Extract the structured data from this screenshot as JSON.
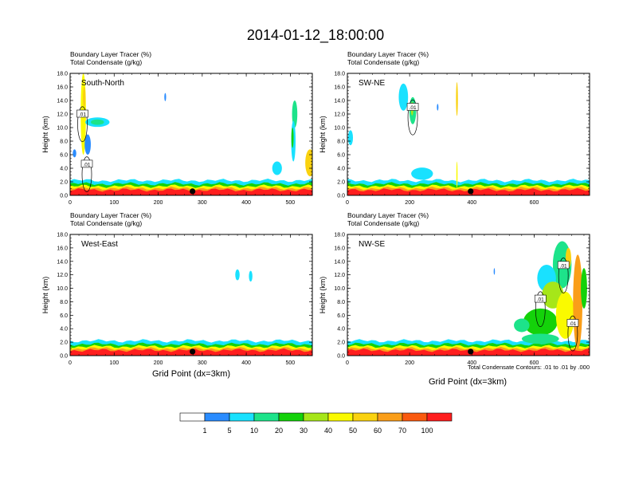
{
  "title": "2014-01-12_18:00:00",
  "panel_header_line1": "Boundary Layer Tracer   (%)",
  "panel_header_line2": "Total Condensate   (g/kg)",
  "xlabel": "Grid Point (dx=3km)",
  "ylabel": "Height (km)",
  "contour_note": "Total Condensate Contours: .01 to .01 by .000",
  "colorbar": {
    "colors": [
      "#ffffff",
      "#2a8cff",
      "#19e1ff",
      "#1de38a",
      "#14d20a",
      "#a6e619",
      "#fafa00",
      "#fad20f",
      "#fa9e19",
      "#fa5a0f",
      "#ff1e1e"
    ],
    "labels": [
      "1",
      "5",
      "10",
      "20",
      "30",
      "40",
      "50",
      "60",
      "70",
      "100"
    ]
  },
  "chart_data": [
    {
      "type": "heatmap",
      "name": "South-North",
      "xlim": [
        0,
        550
      ],
      "ylim": [
        0,
        18
      ],
      "xticks": [
        "0",
        "100",
        "200",
        "300",
        "400",
        "500"
      ],
      "yticks": [
        "0.0",
        "2.0",
        "4.0",
        "6.0",
        "8.0",
        "10.0",
        "12.0",
        "14.0",
        "16.0",
        "18.0"
      ],
      "marker_x": 278,
      "contour_labels": [
        {
          "text": ".01",
          "x": 28,
          "y": 12.0
        },
        {
          "text": ".01",
          "x": 38,
          "y": 4.6
        }
      ],
      "blobs": [
        {
          "x": 30,
          "y": 12,
          "w": 12,
          "h": 12,
          "c": 6
        },
        {
          "x": 32,
          "y": 14.5,
          "w": 6,
          "h": 3,
          "c": 7
        },
        {
          "x": 62,
          "y": 10.8,
          "w": 55,
          "h": 1.4,
          "c": 2
        },
        {
          "x": 62,
          "y": 10.8,
          "w": 30,
          "h": 0.8,
          "c": 3
        },
        {
          "x": 40,
          "y": 7.5,
          "w": 14,
          "h": 3,
          "c": 1
        },
        {
          "x": 10,
          "y": 6.2,
          "w": 8,
          "h": 1.2,
          "c": 1
        },
        {
          "x": 216,
          "y": 14.5,
          "w": 4,
          "h": 1.2,
          "c": 1
        },
        {
          "x": 510,
          "y": 12,
          "w": 12,
          "h": 4,
          "c": 3
        },
        {
          "x": 507,
          "y": 8,
          "w": 10,
          "h": 6,
          "c": 2
        },
        {
          "x": 505,
          "y": 8.5,
          "w": 5,
          "h": 3,
          "c": 4
        },
        {
          "x": 545,
          "y": 4.8,
          "w": 22,
          "h": 4,
          "c": 7
        },
        {
          "x": 470,
          "y": 4.0,
          "w": 22,
          "h": 2,
          "c": 2
        }
      ]
    },
    {
      "type": "heatmap",
      "name": "SW-NE",
      "xlim": [
        0,
        778
      ],
      "ylim": [
        0,
        18
      ],
      "xticks": [
        "0",
        "200",
        "400",
        "600"
      ],
      "yticks": [
        "0.0",
        "2.0",
        "4.0",
        "6.0",
        "8.0",
        "10.0",
        "12.0",
        "14.0",
        "16.0",
        "18.0"
      ],
      "marker_x": 396,
      "contour_labels": [
        {
          "text": ".01",
          "x": 210,
          "y": 13.0
        }
      ],
      "blobs": [
        {
          "x": 210,
          "y": 12.5,
          "w": 22,
          "h": 4,
          "c": 3
        },
        {
          "x": 208,
          "y": 12.8,
          "w": 8,
          "h": 2,
          "c": 5
        },
        {
          "x": 180,
          "y": 14.5,
          "w": 30,
          "h": 4,
          "c": 2
        },
        {
          "x": 352,
          "y": 14.2,
          "w": 6,
          "h": 5,
          "c": 7
        },
        {
          "x": 10,
          "y": 8.5,
          "w": 16,
          "h": 2.2,
          "c": 2
        },
        {
          "x": 240,
          "y": 3.2,
          "w": 70,
          "h": 1.8,
          "c": 2
        },
        {
          "x": 352,
          "y": 3.0,
          "w": 4,
          "h": 4,
          "c": 6
        },
        {
          "x": 290,
          "y": 13.0,
          "w": 5,
          "h": 1.0,
          "c": 1
        }
      ]
    },
    {
      "type": "heatmap",
      "name": "West-East",
      "xlim": [
        0,
        550
      ],
      "ylim": [
        0,
        18
      ],
      "xticks": [
        "0",
        "100",
        "200",
        "300",
        "400",
        "500"
      ],
      "yticks": [
        "0.0",
        "2.0",
        "4.0",
        "6.0",
        "8.0",
        "10.0",
        "12.0",
        "14.0",
        "16.0",
        "18.0"
      ],
      "marker_x": 278,
      "contour_labels": [],
      "blobs": [
        {
          "x": 380,
          "y": 12.0,
          "w": 10,
          "h": 1.6,
          "c": 2
        },
        {
          "x": 410,
          "y": 11.8,
          "w": 8,
          "h": 1.6,
          "c": 2
        }
      ]
    },
    {
      "type": "heatmap",
      "name": "NW-SE",
      "xlim": [
        0,
        778
      ],
      "ylim": [
        0,
        18
      ],
      "xticks": [
        "0",
        "200",
        "400",
        "600"
      ],
      "yticks": [
        "0.0",
        "2.0",
        "4.0",
        "6.0",
        "8.0",
        "10.0",
        "12.0",
        "14.0",
        "16.0",
        "18.0"
      ],
      "marker_x": 396,
      "contour_labels": [
        {
          "text": ".01",
          "x": 694,
          "y": 13.4
        },
        {
          "text": ".01",
          "x": 620,
          "y": 8.4
        },
        {
          "text": ".01",
          "x": 724,
          "y": 4.8
        }
      ],
      "blobs": [
        {
          "x": 690,
          "y": 13.5,
          "w": 60,
          "h": 7,
          "c": 3
        },
        {
          "x": 710,
          "y": 14.5,
          "w": 18,
          "h": 3,
          "c": 7
        },
        {
          "x": 640,
          "y": 11.5,
          "w": 60,
          "h": 4,
          "c": 2
        },
        {
          "x": 660,
          "y": 9,
          "w": 70,
          "h": 4,
          "c": 5
        },
        {
          "x": 620,
          "y": 5,
          "w": 110,
          "h": 4,
          "c": 4
        },
        {
          "x": 700,
          "y": 6,
          "w": 60,
          "h": 7,
          "c": 6
        },
        {
          "x": 740,
          "y": 8,
          "w": 30,
          "h": 14,
          "c": 8
        },
        {
          "x": 560,
          "y": 4.5,
          "w": 50,
          "h": 2,
          "c": 3
        },
        {
          "x": 620,
          "y": 2.5,
          "w": 120,
          "h": 1.5,
          "c": 3
        },
        {
          "x": 760,
          "y": 10,
          "w": 20,
          "h": 6,
          "c": 4
        },
        {
          "x": 472,
          "y": 12.5,
          "w": 4,
          "h": 1,
          "c": 1
        }
      ]
    }
  ]
}
